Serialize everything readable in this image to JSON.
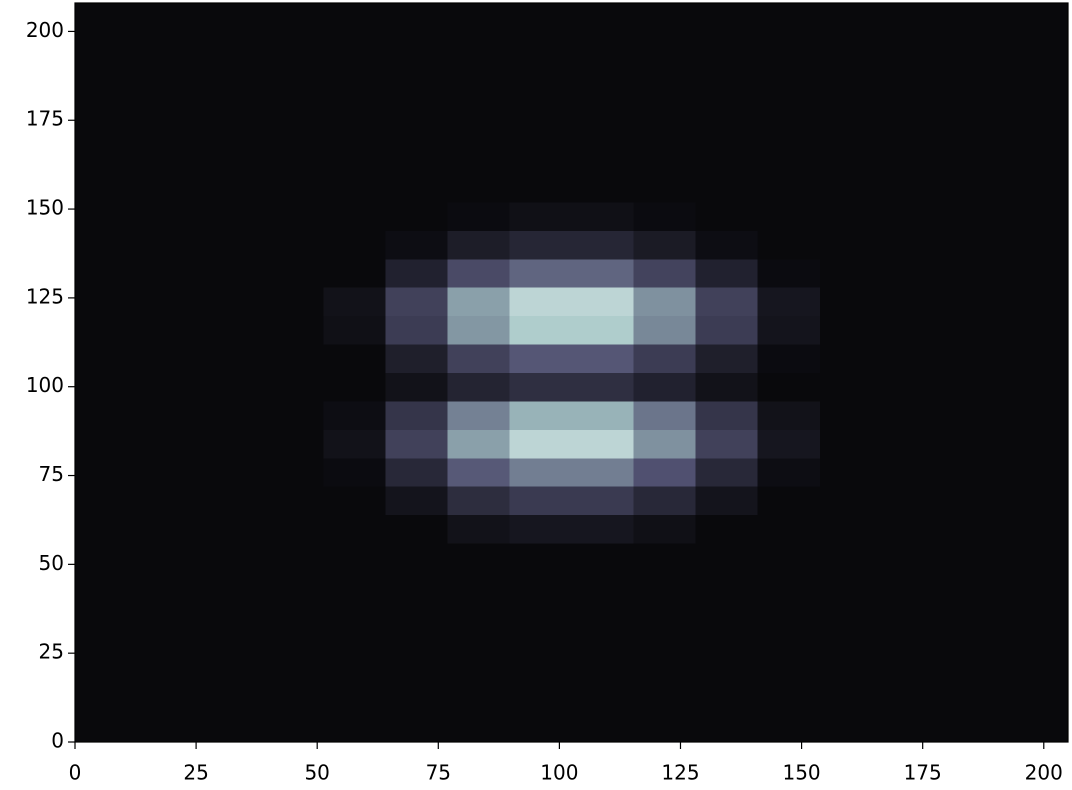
{
  "chart_data": {
    "type": "heatmap",
    "colormap": "bone",
    "xlim": [
      0,
      205
    ],
    "ylim": [
      0,
      208
    ],
    "xticks": [
      0,
      25,
      50,
      75,
      100,
      125,
      150,
      175,
      200
    ],
    "yticks": [
      0,
      25,
      50,
      75,
      100,
      125,
      150,
      175,
      200
    ],
    "z": [
      [
        0.04,
        0.04,
        0.04,
        0.04,
        0.04,
        0.04,
        0.04,
        0.04,
        0.04,
        0.04,
        0.04,
        0.04,
        0.04,
        0.04,
        0.04,
        0.04
      ],
      [
        0.04,
        0.04,
        0.04,
        0.04,
        0.04,
        0.04,
        0.04,
        0.04,
        0.04,
        0.04,
        0.04,
        0.04,
        0.04,
        0.04,
        0.04,
        0.04
      ],
      [
        0.04,
        0.04,
        0.04,
        0.04,
        0.04,
        0.04,
        0.04,
        0.04,
        0.04,
        0.04,
        0.04,
        0.04,
        0.04,
        0.04,
        0.04,
        0.04
      ],
      [
        0.04,
        0.04,
        0.04,
        0.04,
        0.04,
        0.04,
        0.04,
        0.04,
        0.04,
        0.04,
        0.04,
        0.04,
        0.04,
        0.04,
        0.04,
        0.04
      ],
      [
        0.04,
        0.04,
        0.04,
        0.04,
        0.04,
        0.04,
        0.04,
        0.04,
        0.04,
        0.04,
        0.04,
        0.04,
        0.04,
        0.04,
        0.04,
        0.04
      ],
      [
        0.04,
        0.04,
        0.04,
        0.04,
        0.04,
        0.04,
        0.04,
        0.04,
        0.04,
        0.04,
        0.04,
        0.04,
        0.04,
        0.04,
        0.04,
        0.04
      ],
      [
        0.04,
        0.04,
        0.04,
        0.04,
        0.04,
        0.04,
        0.04,
        0.04,
        0.04,
        0.04,
        0.04,
        0.04,
        0.04,
        0.04,
        0.04,
        0.04
      ],
      [
        0.04,
        0.04,
        0.04,
        0.04,
        0.04,
        0.04,
        0.08,
        0.1,
        0.1,
        0.07,
        0.04,
        0.04,
        0.04,
        0.04,
        0.04,
        0.04
      ],
      [
        0.04,
        0.04,
        0.04,
        0.04,
        0.04,
        0.09,
        0.2,
        0.26,
        0.26,
        0.18,
        0.09,
        0.04,
        0.04,
        0.04,
        0.04,
        0.04
      ],
      [
        0.04,
        0.04,
        0.04,
        0.04,
        0.05,
        0.18,
        0.39,
        0.51,
        0.51,
        0.36,
        0.18,
        0.06,
        0.04,
        0.04,
        0.04,
        0.04
      ],
      [
        0.04,
        0.04,
        0.04,
        0.04,
        0.08,
        0.29,
        0.62,
        0.81,
        0.81,
        0.57,
        0.29,
        0.1,
        0.04,
        0.04,
        0.04,
        0.04
      ],
      [
        0.04,
        0.04,
        0.04,
        0.04,
        0.06,
        0.24,
        0.52,
        0.68,
        0.68,
        0.48,
        0.24,
        0.08,
        0.04,
        0.04,
        0.04,
        0.04
      ],
      [
        0.04,
        0.04,
        0.04,
        0.04,
        0.04,
        0.08,
        0.16,
        0.21,
        0.21,
        0.15,
        0.08,
        0.04,
        0.04,
        0.04,
        0.04,
        0.04
      ],
      [
        0.04,
        0.04,
        0.04,
        0.04,
        0.04,
        0.14,
        0.29,
        0.38,
        0.38,
        0.27,
        0.14,
        0.05,
        0.04,
        0.04,
        0.04,
        0.04
      ],
      [
        0.04,
        0.04,
        0.04,
        0.04,
        0.07,
        0.27,
        0.59,
        0.77,
        0.77,
        0.54,
        0.27,
        0.09,
        0.04,
        0.04,
        0.04,
        0.04
      ],
      [
        0.04,
        0.04,
        0.04,
        0.04,
        0.08,
        0.29,
        0.62,
        0.81,
        0.81,
        0.57,
        0.29,
        0.1,
        0.04,
        0.04,
        0.04,
        0.04
      ],
      [
        0.04,
        0.04,
        0.04,
        0.04,
        0.04,
        0.15,
        0.33,
        0.43,
        0.43,
        0.3,
        0.15,
        0.05,
        0.04,
        0.04,
        0.04,
        0.04
      ],
      [
        0.04,
        0.04,
        0.04,
        0.04,
        0.04,
        0.06,
        0.13,
        0.17,
        0.17,
        0.12,
        0.06,
        0.04,
        0.04,
        0.04,
        0.04,
        0.04
      ],
      [
        0.04,
        0.04,
        0.04,
        0.04,
        0.04,
        0.04,
        0.05,
        0.07,
        0.07,
        0.05,
        0.04,
        0.04,
        0.04,
        0.04,
        0.04,
        0.04
      ],
      [
        0.04,
        0.04,
        0.04,
        0.04,
        0.04,
        0.04,
        0.04,
        0.04,
        0.04,
        0.04,
        0.04,
        0.04,
        0.04,
        0.04,
        0.04,
        0.04
      ],
      [
        0.04,
        0.04,
        0.04,
        0.04,
        0.04,
        0.04,
        0.04,
        0.04,
        0.04,
        0.04,
        0.04,
        0.04,
        0.04,
        0.04,
        0.04,
        0.04
      ],
      [
        0.04,
        0.04,
        0.04,
        0.04,
        0.04,
        0.04,
        0.04,
        0.04,
        0.04,
        0.04,
        0.04,
        0.04,
        0.04,
        0.04,
        0.04,
        0.04
      ],
      [
        0.04,
        0.04,
        0.04,
        0.04,
        0.04,
        0.04,
        0.04,
        0.04,
        0.04,
        0.04,
        0.04,
        0.04,
        0.04,
        0.04,
        0.04,
        0.04
      ],
      [
        0.04,
        0.04,
        0.04,
        0.04,
        0.04,
        0.04,
        0.04,
        0.04,
        0.04,
        0.04,
        0.04,
        0.04,
        0.04,
        0.04,
        0.04,
        0.04
      ],
      [
        0.04,
        0.04,
        0.04,
        0.04,
        0.04,
        0.04,
        0.04,
        0.04,
        0.04,
        0.04,
        0.04,
        0.04,
        0.04,
        0.04,
        0.04,
        0.04
      ],
      [
        0.04,
        0.04,
        0.04,
        0.04,
        0.04,
        0.04,
        0.04,
        0.04,
        0.04,
        0.04,
        0.04,
        0.04,
        0.04,
        0.04,
        0.04,
        0.04
      ]
    ]
  }
}
